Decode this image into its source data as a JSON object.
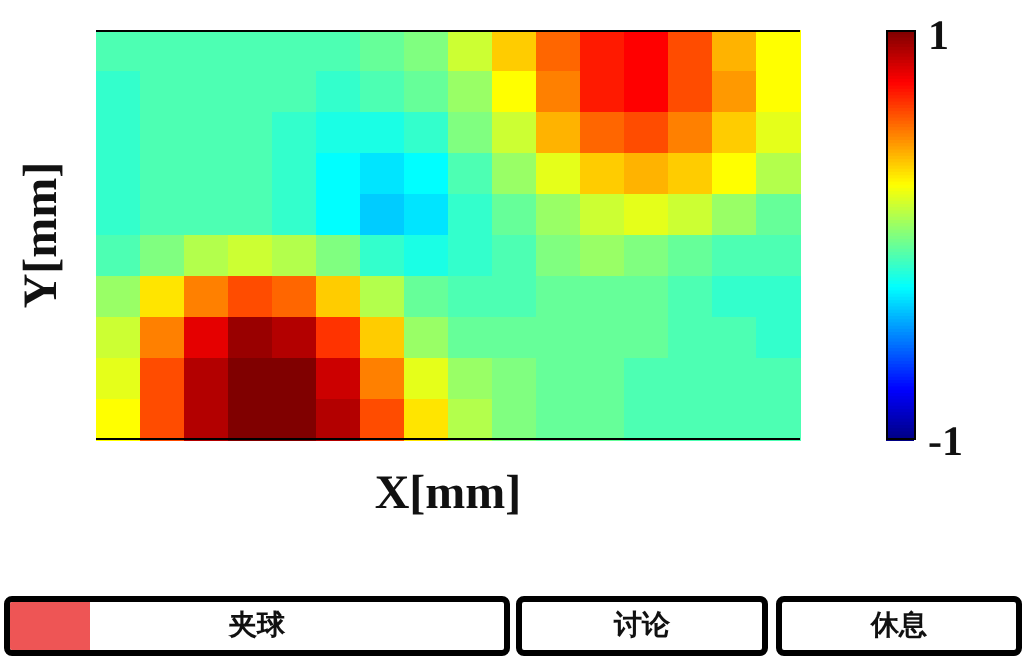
{
  "chart_data": {
    "type": "heatmap",
    "xlabel": "X[mm]",
    "ylabel": "Y[mm]",
    "categories": [
      null,
      null,
      null,
      null,
      null,
      null,
      null,
      null,
      null,
      null,
      null,
      null,
      null,
      null,
      null,
      null
    ],
    "y_categories": [
      null,
      null,
      null,
      null,
      null,
      null,
      null,
      null,
      null,
      null
    ],
    "cells": [
      [
        -0.1,
        -0.1,
        -0.1,
        -0.1,
        -0.1,
        -0.1,
        -0.05,
        0,
        0.15,
        0.35,
        0.55,
        0.7,
        0.75,
        0.6,
        0.4,
        0.25
      ],
      [
        -0.15,
        -0.1,
        -0.1,
        -0.1,
        -0.1,
        -0.15,
        -0.1,
        -0.05,
        0.05,
        0.25,
        0.5,
        0.7,
        0.75,
        0.6,
        0.45,
        0.25
      ],
      [
        -0.15,
        -0.1,
        -0.1,
        -0.1,
        -0.15,
        -0.2,
        -0.2,
        -0.15,
        0,
        0.15,
        0.4,
        0.55,
        0.6,
        0.5,
        0.35,
        0.2
      ],
      [
        -0.15,
        -0.1,
        -0.1,
        -0.1,
        -0.15,
        -0.25,
        -0.3,
        -0.25,
        -0.1,
        0.05,
        0.2,
        0.35,
        0.4,
        0.35,
        0.25,
        0.1
      ],
      [
        -0.15,
        -0.1,
        -0.1,
        -0.1,
        -0.15,
        -0.25,
        -0.35,
        -0.3,
        -0.15,
        -0.05,
        0.05,
        0.15,
        0.2,
        0.15,
        0.05,
        -0.05
      ],
      [
        -0.1,
        0,
        0.1,
        0.15,
        0.1,
        0,
        -0.15,
        -0.2,
        -0.15,
        -0.1,
        0,
        0.05,
        0,
        -0.05,
        -0.1,
        -0.1
      ],
      [
        0.05,
        0.3,
        0.5,
        0.6,
        0.55,
        0.35,
        0.1,
        -0.05,
        -0.1,
        -0.1,
        -0.05,
        -0.05,
        -0.05,
        -0.1,
        -0.15,
        -0.15
      ],
      [
        0.15,
        0.5,
        0.8,
        0.95,
        0.9,
        0.65,
        0.35,
        0.05,
        -0.05,
        -0.05,
        -0.05,
        -0.05,
        -0.05,
        -0.1,
        -0.1,
        -0.15
      ],
      [
        0.2,
        0.6,
        0.9,
        1,
        1,
        0.85,
        0.5,
        0.2,
        0.05,
        0,
        -0.05,
        -0.05,
        -0.1,
        -0.1,
        -0.1,
        -0.1
      ],
      [
        0.25,
        0.6,
        0.9,
        1,
        1,
        0.9,
        0.6,
        0.3,
        0.1,
        0,
        -0.05,
        -0.05,
        -0.1,
        -0.1,
        -0.1,
        -0.1
      ]
    ],
    "clim": [
      -1,
      1
    ],
    "cticks": [
      -1,
      1
    ],
    "annotations": [
      "夹球",
      "讨论",
      "休息"
    ]
  }
}
